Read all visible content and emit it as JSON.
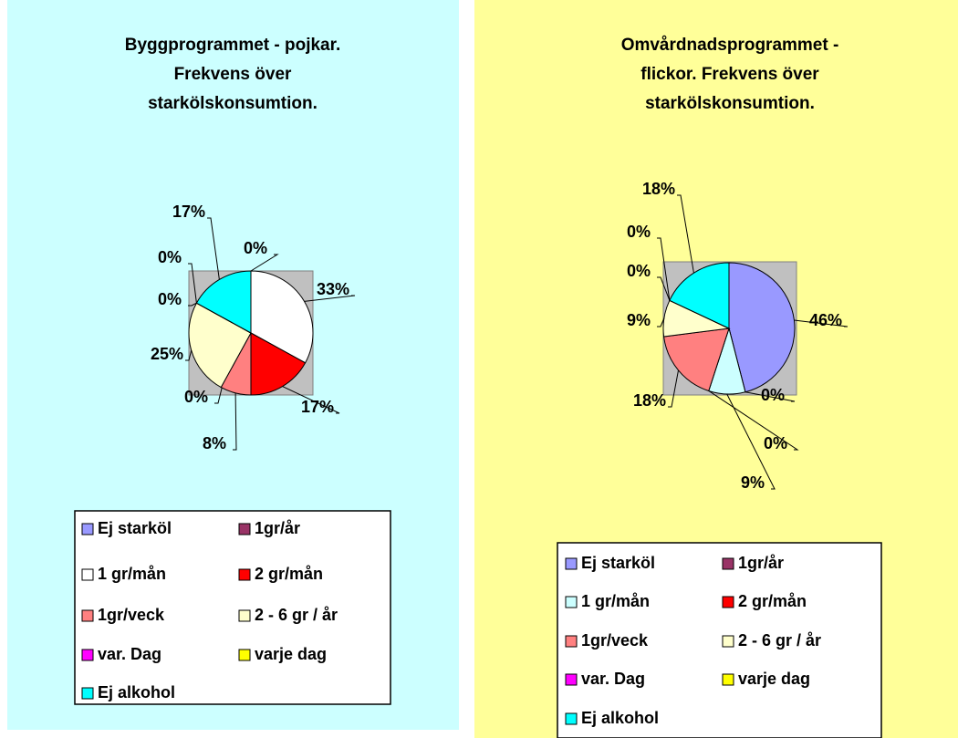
{
  "chart_data": [
    {
      "type": "pie",
      "title": "Byggprogrammet - pojkar.\nFrekvens över\nstarkölskonsumtion.",
      "categories": [
        "Ej starköl",
        "1gr/år",
        "1 gr/mån",
        "2 gr/mån",
        "1gr/veck",
        "2 - 6 gr / år",
        "var. Dag",
        "varje dag",
        "Ej alkohol"
      ],
      "values": [
        0,
        0,
        33,
        17,
        8,
        25,
        0,
        0,
        17
      ],
      "value_labels": [
        "0%",
        "0%",
        "33%",
        "17%",
        "8%",
        "25%",
        "0%",
        "0%",
        "17%"
      ],
      "colors": [
        "#9999ff",
        "#993366",
        "#ffffff",
        "#ff0000",
        "#ff8080",
        "#ffffcc",
        "#ff00ff",
        "#ffff00",
        "#00ffff"
      ]
    },
    {
      "type": "pie",
      "title": "Omvårdnadsprogrammet -\nflickor.   Frekvens över\nstarkölskonsumtion.",
      "categories": [
        "Ej starköl",
        "1gr/år",
        "1 gr/mån",
        "2 gr/mån",
        "1gr/veck",
        "2 - 6 gr / år",
        "var. Dag",
        "varje dag",
        "Ej alkohol"
      ],
      "values": [
        46,
        0,
        9,
        0,
        18,
        9,
        0,
        0,
        18
      ],
      "value_labels": [
        "46%",
        "0%",
        "9%",
        "0%",
        "18%",
        "9%",
        "0%",
        "0%",
        "18%"
      ],
      "colors": [
        "#9999ff",
        "#993366",
        "#ccffff",
        "#ff0000",
        "#ff8080",
        "#ffffcc",
        "#ff00ff",
        "#ffff00",
        "#00ffff"
      ]
    }
  ]
}
